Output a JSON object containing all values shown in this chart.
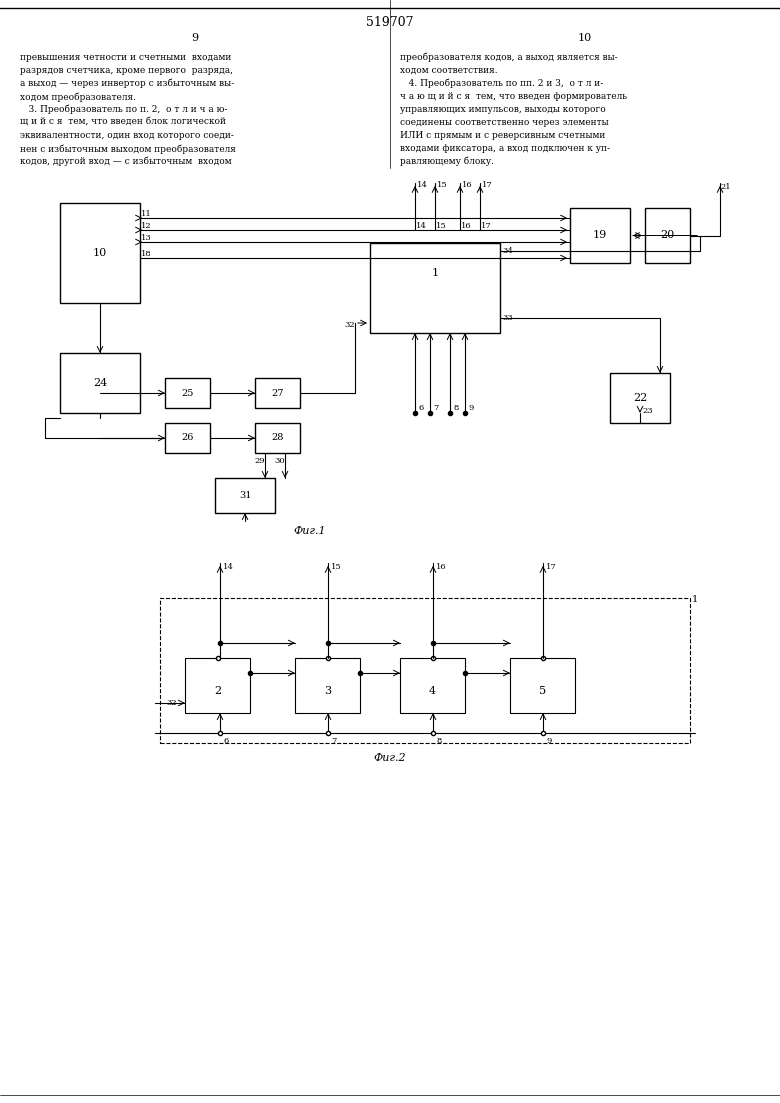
{
  "page_number_top": "519707",
  "col_left_number": "9",
  "col_right_number": "10",
  "text_left": "превышения четности и счетными входами\nразрядов счетчика, кроме первого разряда,\nа выход — через инвертор с избыточным вы-\nходом преобразователя.\n   3. Преобразователь по п. 2,  о т л и ч а ю-\nщ и й с я  тем, что введен блок логической\nэквивалентности, один вход которого соеди-\nнен с избыточным выходом преобразователя\nкодов, другой вход — с избыточным входом",
  "text_right": "преобразователя кодов, а выход является вы-\nходом соответствия.\n   4. Преобразователь по пп. 2 и 3,  о т л и-\nч а ю щ и й с я  тем, что введен формирователь\nуправляющих импульсов, выходы которого\nсоединены соответственно через элементы\nИЛИ с прямым и с реверсивным счетными\nвходами фиксатора, а вход подключен к уп-\nравляющему блоку.",
  "fig1_label": "Фиг.1",
  "fig2_label": "Фиг.2",
  "bg_color": "#ffffff",
  "line_color": "#000000",
  "text_color": "#000000"
}
